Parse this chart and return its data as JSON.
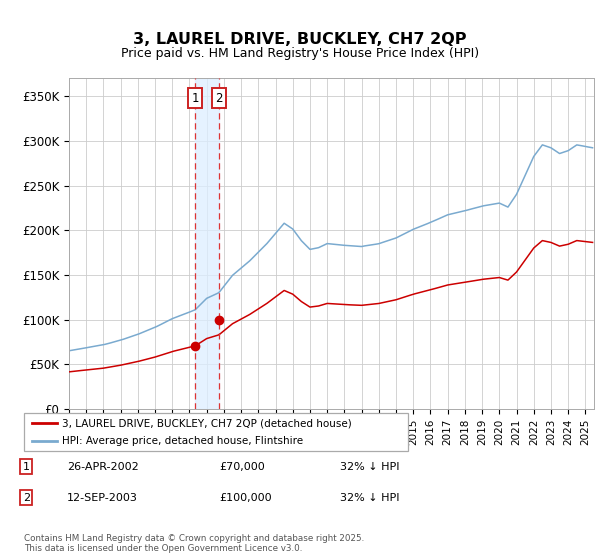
{
  "title": "3, LAUREL DRIVE, BUCKLEY, CH7 2QP",
  "subtitle": "Price paid vs. HM Land Registry's House Price Index (HPI)",
  "ylabel_ticks": [
    "£0",
    "£50K",
    "£100K",
    "£150K",
    "£200K",
    "£250K",
    "£300K",
    "£350K"
  ],
  "ytick_values": [
    0,
    50000,
    100000,
    150000,
    200000,
    250000,
    300000,
    350000
  ],
  "ylim": [
    0,
    370000
  ],
  "xlim_start": 1995.0,
  "xlim_end": 2025.5,
  "sale1_date": 2002.32,
  "sale1_price": 70000,
  "sale2_date": 2003.71,
  "sale2_price": 100000,
  "sale1_info": "26-APR-2002",
  "sale1_amount": "£70,000",
  "sale1_hpi": "32% ↓ HPI",
  "sale2_info": "12-SEP-2003",
  "sale2_amount": "£100,000",
  "sale2_hpi": "32% ↓ HPI",
  "red_line_label": "3, LAUREL DRIVE, BUCKLEY, CH7 2QP (detached house)",
  "blue_line_label": "HPI: Average price, detached house, Flintshire",
  "footer": "Contains HM Land Registry data © Crown copyright and database right 2025.\nThis data is licensed under the Open Government Licence v3.0.",
  "background_color": "#ffffff",
  "plot_bg_color": "#ffffff",
  "grid_color": "#cccccc",
  "red_color": "#cc0000",
  "blue_color": "#7aaacf",
  "shade_color": "#ddeeff"
}
